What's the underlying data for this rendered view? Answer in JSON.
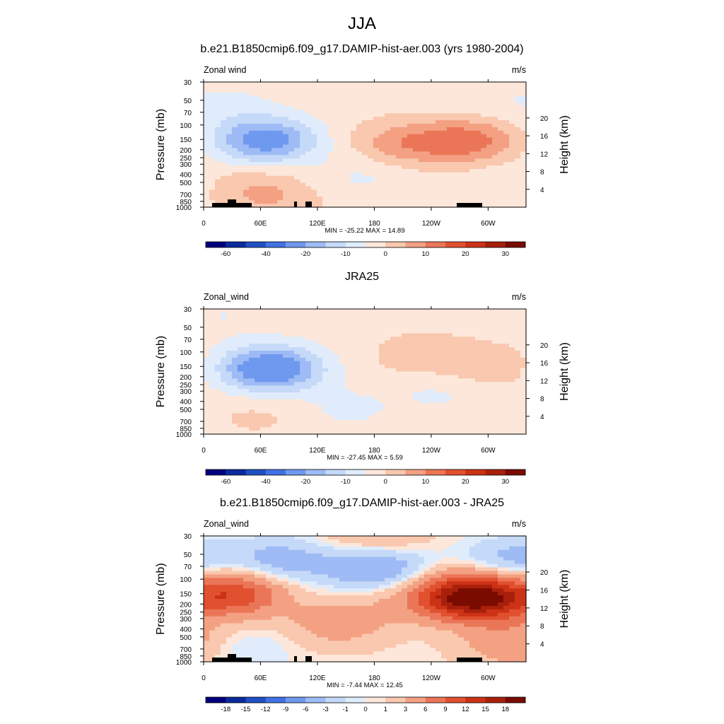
{
  "figure_title": "JJA",
  "chart_data": [
    {
      "type": "heatmap",
      "title": "b.e21.B1850cmip6.f09_g17.DAMIP-hist-aer.003 (yrs 1980-2004)",
      "variable_label": "Zonal wind",
      "units": "m/s",
      "ylabel": "Pressure (mb)",
      "y2label": "Height (km)",
      "x_ticks": [
        "0",
        "60E",
        "120E",
        "180",
        "120W",
        "60W"
      ],
      "y_ticks": [
        "30",
        "50",
        "70",
        "100",
        "150",
        "200",
        "250",
        "300",
        "400",
        "500",
        "700",
        "850",
        "1000"
      ],
      "height_ticks": [
        "20",
        "16",
        "12",
        "8",
        "4"
      ],
      "stats": "MIN = -25.22  MAX =  14.89",
      "min": -25.22,
      "max": 14.89,
      "colorbar_levels": [
        -70,
        -60,
        -50,
        -40,
        -30,
        -20,
        -15,
        -10,
        -5,
        0,
        5,
        10,
        15,
        20,
        25,
        30,
        35
      ],
      "colorbar_labels": [
        "-60",
        "-40",
        "-20",
        "-10",
        "0",
        "10",
        "20",
        "30"
      ],
      "features": [
        {
          "lon": 65,
          "p": 155,
          "value": -22
        },
        {
          "lon": 210,
          "p": 170,
          "value": 10
        },
        {
          "lon": 280,
          "p": 155,
          "value": 14.5
        },
        {
          "lon": 45,
          "p": 500,
          "value": 4
        },
        {
          "lon": 70,
          "p": 800,
          "value": 6
        },
        {
          "lon": 300,
          "p": 50,
          "value": -3
        },
        {
          "lon": 30,
          "p": 60,
          "value": -4
        },
        {
          "lon": 170,
          "p": 400,
          "value": -4
        },
        {
          "lon": 330,
          "p": 500,
          "value": -3
        }
      ]
    },
    {
      "type": "heatmap",
      "title": "JRA25",
      "variable_label": "Zonal_wind",
      "units": "m/s",
      "ylabel": "Pressure (mb)",
      "y2label": "Height (km)",
      "x_ticks": [
        "0",
        "60E",
        "120E",
        "180",
        "120W",
        "60W"
      ],
      "y_ticks": [
        "30",
        "50",
        "70",
        "100",
        "150",
        "200",
        "250",
        "300",
        "400",
        "500",
        "700",
        "850",
        "1000"
      ],
      "height_ticks": [
        "20",
        "16",
        "12",
        "8",
        "4"
      ],
      "stats": "MIN = -27.45  MAX =   5.59",
      "min": -27.45,
      "max": 5.59,
      "colorbar_levels": [
        -70,
        -60,
        -50,
        -40,
        -30,
        -20,
        -15,
        -10,
        -5,
        0,
        5,
        10,
        15,
        20,
        25,
        30,
        35
      ],
      "colorbar_labels": [
        "-60",
        "-40",
        "-20",
        "-10",
        "0",
        "10",
        "20",
        "30"
      ],
      "features": [
        {
          "lon": 70,
          "p": 160,
          "value": -26
        },
        {
          "lon": 230,
          "p": 110,
          "value": 5
        },
        {
          "lon": 300,
          "p": 150,
          "value": 5.5
        },
        {
          "lon": 20,
          "p": 35,
          "value": -3
        },
        {
          "lon": 250,
          "p": 300,
          "value": -4
        },
        {
          "lon": 60,
          "p": 600,
          "value": 3
        },
        {
          "lon": 150,
          "p": 500,
          "value": -4
        }
      ]
    },
    {
      "type": "heatmap",
      "title": "b.e21.B1850cmip6.f09_g17.DAMIP-hist-aer.003 - JRA25",
      "variable_label": "Zonal_wind",
      "units": "m/s",
      "ylabel": "Pressure (mb)",
      "y2label": "Height (km)",
      "x_ticks": [
        "0",
        "60E",
        "120E",
        "180",
        "120W",
        "60W"
      ],
      "y_ticks": [
        "30",
        "50",
        "70",
        "100",
        "150",
        "200",
        "250",
        "300",
        "400",
        "500",
        "700",
        "850",
        "1000"
      ],
      "height_ticks": [
        "20",
        "16",
        "12",
        "8",
        "4"
      ],
      "stats": "MIN = -7.44  MAX =  12.45",
      "min": -7.44,
      "max": 12.45,
      "colorbar_levels": [
        -21,
        -18,
        -15,
        -12,
        -9,
        -6,
        -3,
        -1,
        0,
        1,
        3,
        6,
        9,
        12,
        15,
        18,
        21
      ],
      "colorbar_labels": [
        "-18",
        "-15",
        "-12",
        "-9",
        "-6",
        "-3",
        "-1",
        "0",
        "1",
        "3",
        "6",
        "9",
        "12",
        "15",
        "18"
      ],
      "features": [
        {
          "lon": 180,
          "p": 70,
          "value": -7.4
        },
        {
          "lon": 30,
          "p": 150,
          "value": 11
        },
        {
          "lon": 270,
          "p": 160,
          "value": 12
        },
        {
          "lon": 300,
          "p": 170,
          "value": 11
        },
        {
          "lon": 80,
          "p": 60,
          "value": -5
        },
        {
          "lon": 330,
          "p": 60,
          "value": -5
        },
        {
          "lon": 180,
          "p": 33,
          "value": 4
        },
        {
          "lon": 200,
          "p": 200,
          "value": 1.5
        },
        {
          "lon": 140,
          "p": 350,
          "value": 4
        },
        {
          "lon": 40,
          "p": 700,
          "value": -2
        },
        {
          "lon": 330,
          "p": 600,
          "value": 5
        }
      ]
    }
  ],
  "colors": {
    "level_colors": [
      "#00007f",
      "#0b2a9c",
      "#1f4fc4",
      "#3f72e3",
      "#6f98ef",
      "#9ebbf5",
      "#c5d9f8",
      "#e0ecfb",
      "#fde7da",
      "#f9c8ae",
      "#f3a083",
      "#eb7657",
      "#e1502f",
      "#cc3215",
      "#a8200b",
      "#7a0b00"
    ],
    "topography": "#000000"
  }
}
